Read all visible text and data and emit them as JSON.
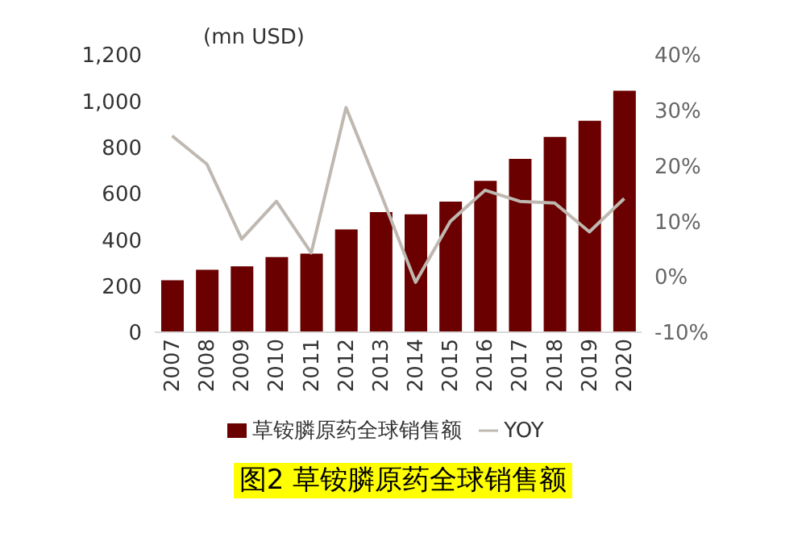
{
  "chart_data": {
    "type": "bar",
    "title": "图2  草铵膦原药全球销售额",
    "annotations": [
      "(mn USD)"
    ],
    "categories": [
      "2007",
      "2008",
      "2009",
      "2010",
      "2011",
      "2012",
      "2013",
      "2014",
      "2015",
      "2016",
      "2017",
      "2018",
      "2019",
      "2020"
    ],
    "series": [
      {
        "name": "草铵膦原药全球销售额",
        "color": "#6b0000",
        "values": [
          225,
          270,
          285,
          325,
          340,
          445,
          520,
          510,
          565,
          655,
          750,
          845,
          915,
          1045
        ]
      },
      {
        "name": "YOY",
        "type": "line",
        "axis": "y2",
        "color": "#bfb8b0",
        "values": [
          25.4,
          20.3,
          6.8,
          13.6,
          4.3,
          30.5,
          15,
          -1,
          10,
          15.6,
          13.6,
          13.3,
          8.1,
          14.1
        ]
      }
    ],
    "ylim": [
      0,
      1200
    ],
    "yticks": [
      0,
      200,
      400,
      600,
      800,
      {
        "value": 1000,
        "label": "1,000"
      },
      {
        "value": 1200,
        "label": "1,200"
      }
    ],
    "y2lim": [
      -10,
      40
    ],
    "y2ticks": [
      {
        "value": -10,
        "label": "-10%"
      },
      {
        "value": 0,
        "label": "0%"
      },
      {
        "value": 10,
        "label": "10%"
      },
      {
        "value": 20,
        "label": "20%"
      },
      {
        "value": 30,
        "label": "30%"
      },
      {
        "value": 40,
        "label": "40%"
      }
    ],
    "marker": "none",
    "grid": false,
    "legend": "bottom"
  }
}
